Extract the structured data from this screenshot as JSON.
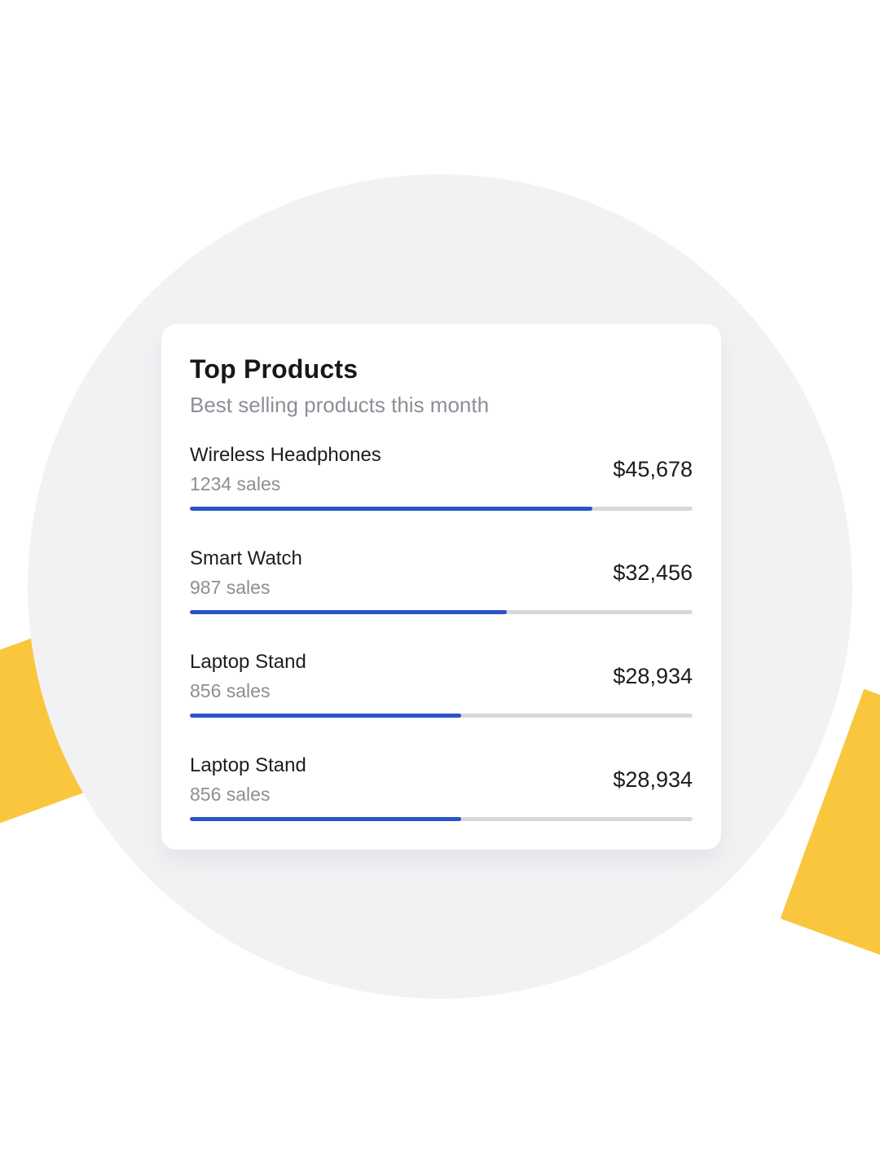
{
  "colors": {
    "accent_yellow": "#fac63d",
    "background_circle": "#f2f2f5",
    "card_background": "#ffffff",
    "progress_fill": "#2b52c9",
    "progress_track": "#d8d8d8",
    "title_text": "#18181b",
    "subtitle_text": "#8b8f96"
  },
  "card": {
    "title": "Top Products",
    "subtitle": "Best selling products this month",
    "products": [
      {
        "name": "Wireless Headphones",
        "sales": "1234 sales",
        "revenue": "$45,678",
        "progress_percent": 80
      },
      {
        "name": "Smart Watch",
        "sales": "987 sales",
        "revenue": "$32,456",
        "progress_percent": 63
      },
      {
        "name": "Laptop Stand",
        "sales": "856 sales",
        "revenue": "$28,934",
        "progress_percent": 54
      },
      {
        "name": "Laptop Stand",
        "sales": "856 sales",
        "revenue": "$28,934",
        "progress_percent": 54
      }
    ]
  }
}
